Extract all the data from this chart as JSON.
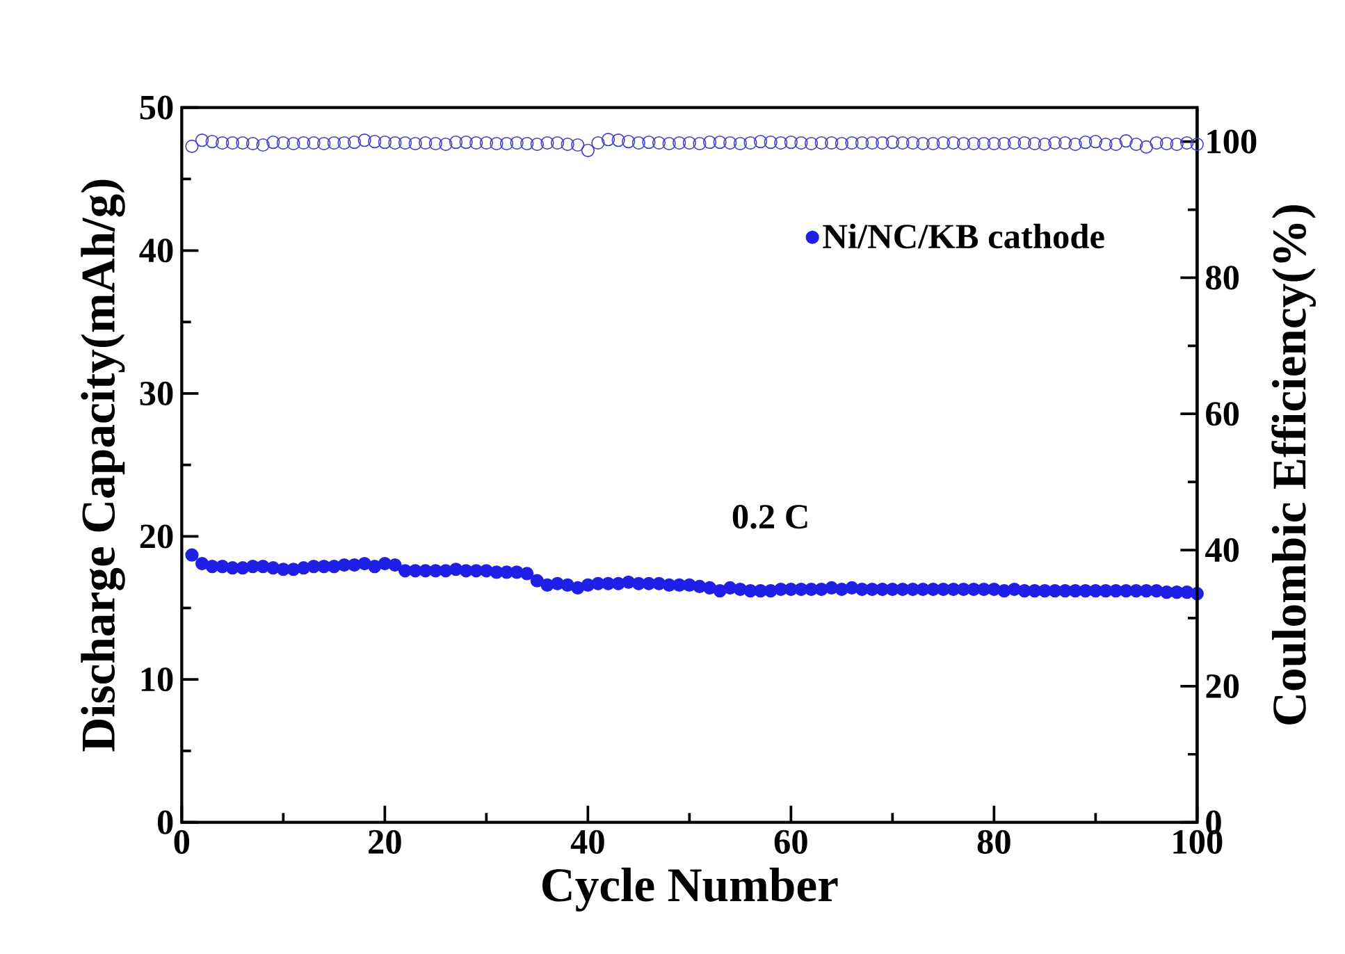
{
  "chart_data": {
    "type": "scatter",
    "xlabel": "Cycle Number",
    "ylabel": "Discharge Capacity(mAh/g)",
    "y2label": "Coulombic Efficiency(%)",
    "x": [
      1,
      2,
      3,
      4,
      5,
      6,
      7,
      8,
      9,
      10,
      11,
      12,
      13,
      14,
      15,
      16,
      17,
      18,
      19,
      20,
      21,
      22,
      23,
      24,
      25,
      26,
      27,
      28,
      29,
      30,
      31,
      32,
      33,
      34,
      35,
      36,
      37,
      38,
      39,
      40,
      41,
      42,
      43,
      44,
      45,
      46,
      47,
      48,
      49,
      50,
      51,
      52,
      53,
      54,
      55,
      56,
      57,
      58,
      59,
      60,
      61,
      62,
      63,
      64,
      65,
      66,
      67,
      68,
      69,
      70,
      71,
      72,
      73,
      74,
      75,
      76,
      77,
      78,
      79,
      80,
      81,
      82,
      83,
      84,
      85,
      86,
      87,
      88,
      89,
      90,
      91,
      92,
      93,
      94,
      95,
      96,
      97,
      98,
      99,
      100
    ],
    "series": [
      {
        "name": "Ni/NC/KB cathode",
        "color": "#1f1fe6",
        "values": [
          18.7,
          18.1,
          17.9,
          17.9,
          17.8,
          17.8,
          17.9,
          17.9,
          17.8,
          17.7,
          17.7,
          17.8,
          17.9,
          17.9,
          17.9,
          18.0,
          18.0,
          18.1,
          17.9,
          18.1,
          18.0,
          17.6,
          17.6,
          17.6,
          17.6,
          17.6,
          17.7,
          17.6,
          17.6,
          17.6,
          17.5,
          17.5,
          17.5,
          17.4,
          16.9,
          16.6,
          16.7,
          16.6,
          16.4,
          16.6,
          16.7,
          16.7,
          16.7,
          16.8,
          16.7,
          16.7,
          16.7,
          16.6,
          16.6,
          16.6,
          16.5,
          16.4,
          16.2,
          16.4,
          16.3,
          16.2,
          16.2,
          16.2,
          16.3,
          16.3,
          16.3,
          16.3,
          16.3,
          16.4,
          16.3,
          16.4,
          16.3,
          16.3,
          16.3,
          16.3,
          16.3,
          16.3,
          16.3,
          16.3,
          16.3,
          16.3,
          16.3,
          16.3,
          16.3,
          16.3,
          16.2,
          16.3,
          16.2,
          16.2,
          16.2,
          16.2,
          16.2,
          16.2,
          16.2,
          16.2,
          16.2,
          16.2,
          16.2,
          16.2,
          16.2,
          16.2,
          16.1,
          16.1,
          16.1,
          16.0
        ]
      },
      {
        "color": "#3f3fc8",
        "axis": "y2",
        "values": [
          99.3,
          100.2,
          100.0,
          99.8,
          99.8,
          99.8,
          99.7,
          99.5,
          99.9,
          99.8,
          99.7,
          99.8,
          99.8,
          99.7,
          99.8,
          99.8,
          99.9,
          100.2,
          100.0,
          99.9,
          99.8,
          99.8,
          99.7,
          99.8,
          99.7,
          99.6,
          99.9,
          99.9,
          99.8,
          99.8,
          99.7,
          99.7,
          99.8,
          99.7,
          99.6,
          99.8,
          99.8,
          99.6,
          99.5,
          98.7,
          99.8,
          100.3,
          100.2,
          100.0,
          99.8,
          99.9,
          99.8,
          99.7,
          99.8,
          99.8,
          99.7,
          99.9,
          99.9,
          99.8,
          99.7,
          99.8,
          100.0,
          99.9,
          99.8,
          99.9,
          99.8,
          99.7,
          99.8,
          99.8,
          99.7,
          99.8,
          99.8,
          99.8,
          99.8,
          99.9,
          99.8,
          99.8,
          99.7,
          99.7,
          99.8,
          99.8,
          99.7,
          99.7,
          99.7,
          99.7,
          99.7,
          99.8,
          99.8,
          99.7,
          99.6,
          99.8,
          99.8,
          99.6,
          99.9,
          100.0,
          99.6,
          99.6,
          100.1,
          99.6,
          99.2,
          99.8,
          99.7,
          99.6,
          99.8,
          99.6
        ]
      }
    ],
    "xlim": [
      0,
      100
    ],
    "xticks": [
      0,
      20,
      40,
      60,
      80,
      100
    ],
    "ylim": [
      0,
      50
    ],
    "yticks": [
      0,
      10,
      20,
      30,
      40,
      50
    ],
    "y2lim": [
      0,
      105
    ],
    "y2ticks": [
      0,
      20,
      40,
      60,
      80,
      100
    ],
    "annotations": [
      "0.2 C"
    ],
    "marker": "circle",
    "legend": "top right",
    "grid": false
  }
}
